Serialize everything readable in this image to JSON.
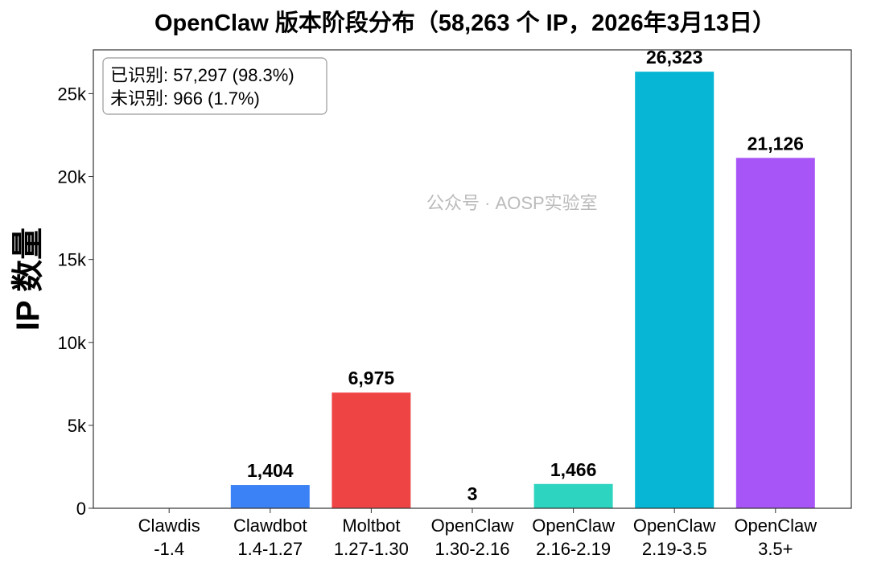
{
  "chart_data": {
    "type": "bar",
    "title": "OpenClaw 版本阶段分布（58,263 个 IP，2026年3月13日）",
    "xlabel": "",
    "ylabel": "IP 数量",
    "categories": [
      [
        "Clawdis",
        "-1.4"
      ],
      [
        "Clawdbot",
        "1.4-1.27"
      ],
      [
        "Moltbot",
        "1.27-1.30"
      ],
      [
        "OpenClaw",
        "1.30-2.16"
      ],
      [
        "OpenClaw",
        "2.16-2.19"
      ],
      [
        "OpenClaw",
        "2.19-3.5"
      ],
      [
        "OpenClaw",
        "3.5+"
      ]
    ],
    "values": [
      0,
      1404,
      6975,
      3,
      1466,
      26323,
      21126
    ],
    "data_labels": [
      "",
      "1,404",
      "6,975",
      "3",
      "1,466",
      "26,323",
      "21,126"
    ],
    "colors": [
      "#9ca3af",
      "#3b82f6",
      "#ef4444",
      "#8b5cf6",
      "#2dd4bf",
      "#06b6d4",
      "#a855f7"
    ],
    "ylim": [
      0,
      27639
    ],
    "yticks": [
      0,
      5000,
      10000,
      15000,
      20000,
      25000
    ],
    "ytick_labels": [
      "0",
      "5k",
      "10k",
      "15k",
      "20k",
      "25k"
    ],
    "grid": false,
    "annotation": {
      "lines": [
        "已识别: 57,297 (98.3%)",
        "未识别: 966 (1.7%)"
      ],
      "placement": "top-left"
    }
  },
  "watermark": "公众号 · AOSP实验室"
}
